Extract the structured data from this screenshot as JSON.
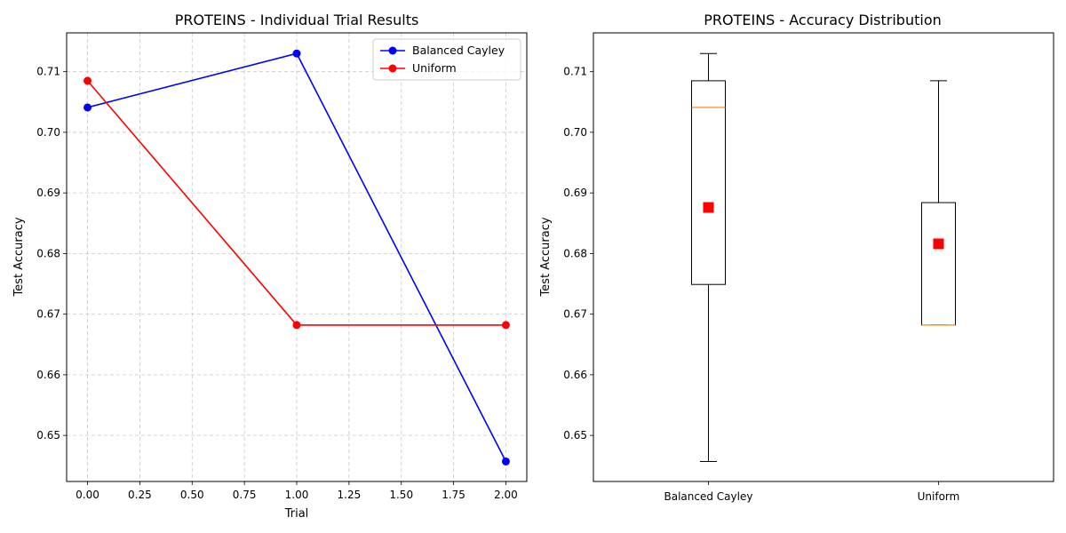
{
  "chart_data": [
    {
      "type": "line",
      "title": "PROTEINS - Individual Trial Results",
      "xlabel": "Trial",
      "ylabel": "Test Accuracy",
      "xlim": [
        -0.1,
        2.1
      ],
      "ylim": [
        0.6424,
        0.7164
      ],
      "xticks": [
        0.0,
        0.25,
        0.5,
        0.75,
        1.0,
        1.25,
        1.5,
        1.75,
        2.0
      ],
      "xtick_labels": [
        "0.00",
        "0.25",
        "0.50",
        "0.75",
        "1.00",
        "1.25",
        "1.50",
        "1.75",
        "2.00"
      ],
      "yticks": [
        0.65,
        0.66,
        0.67,
        0.68,
        0.69,
        0.7,
        0.71
      ],
      "ytick_labels": [
        "0.65",
        "0.66",
        "0.67",
        "0.68",
        "0.69",
        "0.70",
        "0.71"
      ],
      "grid": true,
      "legend_position": "top-right",
      "x": [
        0,
        1,
        2
      ],
      "series": [
        {
          "name": "Balanced Cayley",
          "color": "#0000ff",
          "values": [
            0.7041,
            0.713,
            0.6457
          ]
        },
        {
          "name": "Uniform",
          "color": "#ff0000",
          "values": [
            0.7085,
            0.6682,
            0.6682
          ]
        }
      ]
    },
    {
      "type": "box",
      "title": "PROTEINS - Accuracy Distribution",
      "xlabel": "",
      "ylabel": "Test Accuracy",
      "ylim": [
        0.6424,
        0.7164
      ],
      "yticks": [
        0.65,
        0.66,
        0.67,
        0.68,
        0.69,
        0.7,
        0.71
      ],
      "ytick_labels": [
        "0.65",
        "0.66",
        "0.67",
        "0.68",
        "0.69",
        "0.70",
        "0.71"
      ],
      "grid": false,
      "categories": [
        "Balanced Cayley",
        "Uniform"
      ],
      "boxes": [
        {
          "whislo": 0.6457,
          "q1": 0.6749,
          "median": 0.7041,
          "q3": 0.7085,
          "whishi": 0.713,
          "mean": 0.6876
        },
        {
          "whislo": 0.6682,
          "q1": 0.6682,
          "median": 0.6682,
          "q3": 0.6884,
          "whishi": 0.7085,
          "mean": 0.6816
        }
      ],
      "median_color": "#ff7f0e",
      "mean_color": "#ff0000"
    }
  ]
}
